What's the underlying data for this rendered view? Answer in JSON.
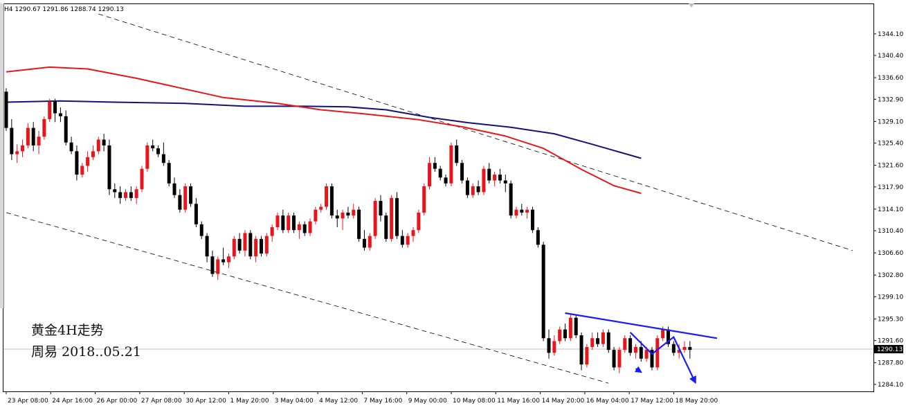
{
  "header": {
    "text": "H4 1290.67 1291.86 1288.74 1290.13"
  },
  "annotation": {
    "line1": "黄金4H走势",
    "line2": "周易 2018..05.21"
  },
  "colors": {
    "bull": "#e8161b",
    "bear": "#000000",
    "ma_fast": "#e8161b",
    "ma_slow": "#12127a",
    "trend": "#1a1aff",
    "channel": "#000000",
    "price_line": "#c0c0c0",
    "grid": "#000000"
  },
  "chart_data": {
    "type": "candlestick",
    "symbol": "XAUUSD",
    "timeframe": "H4",
    "ylim": [
      1282.9,
      1349.3
    ],
    "y_ticks": [
      "1344.10",
      "1340.40",
      "1336.60",
      "1332.90",
      "1329.10",
      "1325.40",
      "1321.60",
      "1317.90",
      "1314.10",
      "1310.40",
      "1306.60",
      "1302.80",
      "1299.10",
      "1295.30",
      "1291.60",
      "1287.80",
      "1284.10"
    ],
    "x_labels": [
      "23 Apr 08:00",
      "24 Apr 16:00",
      "26 Apr 00:00",
      "27 Apr 08:00",
      "30 Apr 12:00",
      "1 May 20:00",
      "3 May 04:00",
      "4 May 12:00",
      "7 May 16:00",
      "9 May 00:00",
      "10 May 08:00",
      "11 May 16:00",
      "14 May 20:00",
      "16 May 04:00",
      "17 May 12:00",
      "18 May 20:00"
    ],
    "last_price": "1290.13",
    "candles": [
      [
        1334.2,
        1334.8,
        1327.5,
        1328.0
      ],
      [
        1328.0,
        1329.5,
        1322.5,
        1323.5
      ],
      [
        1323.5,
        1325.2,
        1322.0,
        1324.0
      ],
      [
        1324.0,
        1326.0,
        1323.0,
        1325.0
      ],
      [
        1325.0,
        1328.8,
        1324.5,
        1328.0
      ],
      [
        1328.0,
        1329.0,
        1324.0,
        1325.0
      ],
      [
        1325.0,
        1327.5,
        1323.5,
        1326.5
      ],
      [
        1326.5,
        1330.0,
        1326.0,
        1329.5
      ],
      [
        1329.5,
        1333.0,
        1329.0,
        1332.5
      ],
      [
        1332.5,
        1333.0,
        1329.0,
        1330.5
      ],
      [
        1330.5,
        1331.5,
        1329.0,
        1330.0
      ],
      [
        1330.0,
        1331.0,
        1325.0,
        1325.5
      ],
      [
        1325.5,
        1326.5,
        1323.5,
        1324.0
      ],
      [
        1324.0,
        1325.0,
        1319.0,
        1320.0
      ],
      [
        1320.0,
        1322.0,
        1319.5,
        1321.5
      ],
      [
        1321.5,
        1324.0,
        1320.5,
        1323.0
      ],
      [
        1323.0,
        1325.0,
        1322.5,
        1324.0
      ],
      [
        1324.0,
        1326.5,
        1323.5,
        1326.0
      ],
      [
        1326.0,
        1327.0,
        1324.0,
        1325.0
      ],
      [
        1325.0,
        1326.0,
        1316.5,
        1317.5
      ],
      [
        1317.5,
        1318.5,
        1316.0,
        1317.0
      ],
      [
        1317.0,
        1318.0,
        1315.0,
        1316.0
      ],
      [
        1316.0,
        1317.5,
        1315.5,
        1317.0
      ],
      [
        1317.0,
        1318.0,
        1315.5,
        1316.0
      ],
      [
        1316.0,
        1318.0,
        1315.0,
        1317.5
      ],
      [
        1317.5,
        1321.5,
        1317.0,
        1321.0
      ],
      [
        1321.0,
        1325.5,
        1320.5,
        1325.0
      ],
      [
        1325.0,
        1326.0,
        1324.0,
        1324.5
      ],
      [
        1324.5,
        1325.0,
        1323.0,
        1323.5
      ],
      [
        1323.5,
        1325.5,
        1321.5,
        1322.0
      ],
      [
        1322.0,
        1322.5,
        1318.0,
        1318.5
      ],
      [
        1318.5,
        1319.5,
        1316.0,
        1316.5
      ],
      [
        1316.5,
        1317.5,
        1313.5,
        1314.0
      ],
      [
        1314.0,
        1318.5,
        1313.5,
        1318.0
      ],
      [
        1318.0,
        1318.5,
        1314.5,
        1315.0
      ],
      [
        1315.0,
        1316.0,
        1311.0,
        1311.5
      ],
      [
        1311.5,
        1312.0,
        1309.0,
        1309.5
      ],
      [
        1309.5,
        1310.0,
        1305.0,
        1306.0
      ],
      [
        1306.0,
        1307.0,
        1302.5,
        1303.0
      ],
      [
        1303.0,
        1306.0,
        1302.0,
        1305.5
      ],
      [
        1305.5,
        1307.5,
        1304.5,
        1305.0
      ],
      [
        1305.0,
        1306.5,
        1304.0,
        1306.0
      ],
      [
        1306.0,
        1309.5,
        1305.5,
        1309.0
      ],
      [
        1309.0,
        1310.0,
        1306.5,
        1307.0
      ],
      [
        1307.0,
        1310.5,
        1306.0,
        1310.0
      ],
      [
        1310.0,
        1310.5,
        1305.5,
        1306.0
      ],
      [
        1306.0,
        1309.5,
        1305.0,
        1309.0
      ],
      [
        1309.0,
        1309.5,
        1306.0,
        1306.5
      ],
      [
        1306.5,
        1310.0,
        1306.0,
        1309.5
      ],
      [
        1309.5,
        1311.5,
        1308.5,
        1311.0
      ],
      [
        1311.0,
        1313.5,
        1310.5,
        1313.0
      ],
      [
        1313.0,
        1314.0,
        1310.0,
        1310.5
      ],
      [
        1310.5,
        1313.5,
        1310.0,
        1313.0
      ],
      [
        1313.0,
        1313.5,
        1310.0,
        1310.5
      ],
      [
        1310.5,
        1312.0,
        1309.0,
        1311.5
      ],
      [
        1311.5,
        1312.0,
        1309.5,
        1310.0
      ],
      [
        1310.0,
        1312.5,
        1309.5,
        1312.0
      ],
      [
        1312.0,
        1314.5,
        1311.5,
        1314.0
      ],
      [
        1314.0,
        1315.0,
        1313.5,
        1314.5
      ],
      [
        1314.5,
        1318.5,
        1314.0,
        1318.0
      ],
      [
        1318.0,
        1318.5,
        1312.5,
        1313.0
      ],
      [
        1313.0,
        1314.0,
        1311.0,
        1312.5
      ],
      [
        1312.5,
        1314.0,
        1310.5,
        1313.5
      ],
      [
        1313.5,
        1314.5,
        1312.5,
        1313.0
      ],
      [
        1313.0,
        1315.0,
        1312.5,
        1314.0
      ],
      [
        1314.0,
        1314.5,
        1308.5,
        1309.0
      ],
      [
        1309.0,
        1310.5,
        1307.0,
        1307.5
      ],
      [
        1307.5,
        1310.0,
        1307.0,
        1309.5
      ],
      [
        1309.5,
        1316.0,
        1309.0,
        1315.5
      ],
      [
        1315.5,
        1316.5,
        1312.0,
        1313.0
      ],
      [
        1313.0,
        1313.5,
        1308.5,
        1309.0
      ],
      [
        1309.0,
        1316.5,
        1308.5,
        1316.0
      ],
      [
        1316.0,
        1317.0,
        1309.0,
        1309.5
      ],
      [
        1309.5,
        1310.5,
        1307.5,
        1308.0
      ],
      [
        1308.0,
        1310.0,
        1307.5,
        1309.5
      ],
      [
        1309.5,
        1311.0,
        1308.5,
        1310.5
      ],
      [
        1310.5,
        1314.0,
        1310.0,
        1313.5
      ],
      [
        1313.5,
        1318.5,
        1313.0,
        1318.0
      ],
      [
        1318.0,
        1323.0,
        1317.5,
        1322.0
      ],
      [
        1322.0,
        1323.0,
        1320.5,
        1321.0
      ],
      [
        1321.0,
        1321.5,
        1319.0,
        1319.5
      ],
      [
        1319.5,
        1320.0,
        1318.0,
        1318.5
      ],
      [
        1318.5,
        1325.5,
        1318.0,
        1325.0
      ],
      [
        1325.0,
        1326.0,
        1321.5,
        1322.0
      ],
      [
        1322.0,
        1322.5,
        1318.5,
        1319.0
      ],
      [
        1319.0,
        1319.5,
        1316.0,
        1316.5
      ],
      [
        1316.5,
        1318.5,
        1316.0,
        1318.0
      ],
      [
        1318.0,
        1319.0,
        1316.5,
        1317.0
      ],
      [
        1317.0,
        1321.5,
        1316.5,
        1321.0
      ],
      [
        1321.0,
        1322.0,
        1318.5,
        1319.0
      ],
      [
        1319.0,
        1320.5,
        1318.0,
        1320.0
      ],
      [
        1320.0,
        1321.0,
        1318.5,
        1319.0
      ],
      [
        1319.0,
        1320.0,
        1317.0,
        1318.5
      ],
      [
        1318.5,
        1319.0,
        1312.5,
        1313.0
      ],
      [
        1313.0,
        1314.5,
        1312.5,
        1314.0
      ],
      [
        1314.0,
        1315.0,
        1313.0,
        1313.5
      ],
      [
        1313.5,
        1314.5,
        1312.5,
        1314.0
      ],
      [
        1314.0,
        1314.5,
        1310.0,
        1310.5
      ],
      [
        1310.5,
        1311.0,
        1307.5,
        1308.0
      ],
      [
        1308.0,
        1308.5,
        1291.5,
        1292.0
      ],
      [
        1292.0,
        1293.5,
        1288.5,
        1289.5
      ],
      [
        1289.5,
        1292.5,
        1289.0,
        1291.5
      ],
      [
        1291.5,
        1294.0,
        1291.0,
        1293.5
      ],
      [
        1293.5,
        1294.5,
        1291.5,
        1292.0
      ],
      [
        1292.0,
        1296.0,
        1291.5,
        1295.5
      ],
      [
        1295.5,
        1296.0,
        1292.0,
        1292.5
      ],
      [
        1292.5,
        1293.0,
        1286.5,
        1287.5
      ],
      [
        1287.5,
        1291.0,
        1287.0,
        1290.5
      ],
      [
        1290.5,
        1293.0,
        1290.0,
        1292.0
      ],
      [
        1292.0,
        1293.0,
        1290.5,
        1291.0
      ],
      [
        1291.0,
        1293.5,
        1290.5,
        1293.0
      ],
      [
        1293.0,
        1293.5,
        1289.5,
        1290.0
      ],
      [
        1290.0,
        1290.5,
        1286.5,
        1287.0
      ],
      [
        1287.0,
        1290.5,
        1286.0,
        1290.0
      ],
      [
        1290.0,
        1292.5,
        1289.5,
        1292.0
      ],
      [
        1292.0,
        1292.5,
        1289.0,
        1289.5
      ],
      [
        1289.5,
        1291.0,
        1288.5,
        1290.5
      ],
      [
        1290.5,
        1291.5,
        1288.0,
        1288.5
      ],
      [
        1288.5,
        1290.5,
        1288.0,
        1290.0
      ],
      [
        1290.0,
        1290.5,
        1286.5,
        1287.0
      ],
      [
        1287.0,
        1292.5,
        1286.5,
        1292.0
      ],
      [
        1292.0,
        1294.0,
        1291.5,
        1293.5
      ],
      [
        1293.5,
        1294.0,
        1290.5,
        1291.0
      ],
      [
        1291.0,
        1291.5,
        1289.0,
        1289.5
      ],
      [
        1289.5,
        1291.0,
        1288.5,
        1290.0
      ],
      [
        1290.0,
        1291.5,
        1289.5,
        1290.5
      ],
      [
        1290.5,
        1291.5,
        1288.5,
        1290.0
      ]
    ],
    "ma_fast": [
      [
        0,
        1337.6
      ],
      [
        8,
        1338.4
      ],
      [
        15,
        1338.1
      ],
      [
        24,
        1336.5
      ],
      [
        40,
        1333.2
      ],
      [
        50,
        1332.2
      ],
      [
        58,
        1331.1
      ],
      [
        66,
        1330.4
      ],
      [
        76,
        1329.4
      ],
      [
        84,
        1328.2
      ],
      [
        92,
        1326.6
      ],
      [
        99,
        1324.5
      ],
      [
        106,
        1320.9
      ],
      [
        112,
        1318.1
      ],
      [
        117,
        1316.8
      ]
    ],
    "ma_slow": [
      [
        0,
        1332.4
      ],
      [
        10,
        1332.6
      ],
      [
        20,
        1332.4
      ],
      [
        33,
        1332.2
      ],
      [
        44,
        1331.7
      ],
      [
        55,
        1331.7
      ],
      [
        63,
        1331.6
      ],
      [
        70,
        1331.1
      ],
      [
        78,
        1329.8
      ],
      [
        85,
        1328.9
      ],
      [
        93,
        1328.1
      ],
      [
        101,
        1327.0
      ],
      [
        108,
        1325.2
      ],
      [
        117,
        1322.8
      ]
    ],
    "channel_upper": [
      [
        17,
        1347.5
      ],
      [
        156,
        1307.0
      ]
    ],
    "channel_lower": [
      [
        0,
        1313.5
      ],
      [
        111,
        1284.3
      ]
    ],
    "resistance": [
      [
        103,
        1296.3
      ],
      [
        131,
        1292.0
      ]
    ],
    "projection": [
      [
        116,
        1286.8
      ],
      [
        117,
        1286.2
      ],
      [
        115,
        1293.0
      ],
      [
        119,
        1289.3
      ],
      [
        123,
        1292.2
      ],
      [
        127,
        1284.4
      ]
    ]
  }
}
